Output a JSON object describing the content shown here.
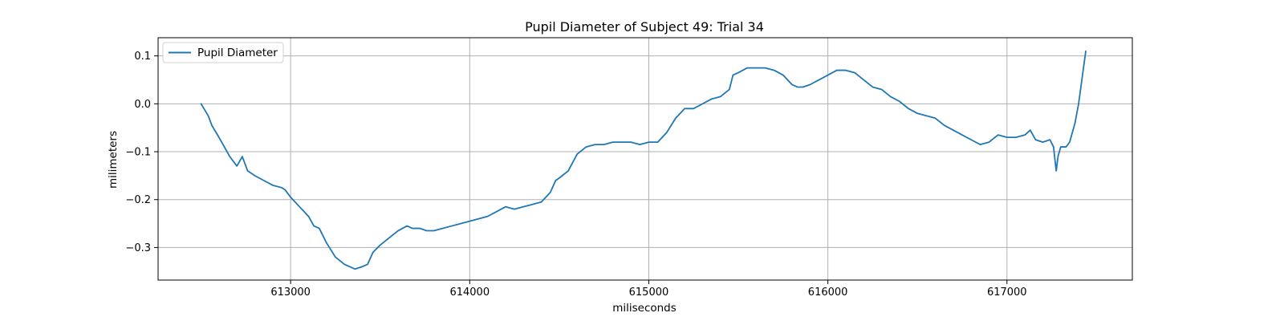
{
  "chart_data": {
    "type": "line",
    "title": "Pupil Diameter of Subject 49: Trial 34",
    "xlabel": "miliseconds",
    "ylabel": "milimeters",
    "xlim": [
      612260,
      617700
    ],
    "ylim": [
      -0.368,
      0.138
    ],
    "xticks": [
      613000,
      614000,
      615000,
      616000,
      617000
    ],
    "yticks": [
      -0.3,
      -0.2,
      -0.1,
      0.0,
      0.1
    ],
    "xtick_labels": [
      "613000",
      "614000",
      "615000",
      "616000",
      "617000"
    ],
    "ytick_labels": [
      "−0.3",
      "−0.2",
      "−0.1",
      "0.0",
      "0.1"
    ],
    "grid": true,
    "legend_position": "top-left",
    "colors": {
      "series": "#1f77b4",
      "grid": "#b0b0b0",
      "axis": "#000000"
    },
    "series": [
      {
        "name": "Pupil Diameter",
        "x": [
          612500,
          612540,
          612560,
          612600,
          612630,
          612660,
          612700,
          612730,
          612760,
          612800,
          612850,
          612900,
          612950,
          612970,
          613000,
          613050,
          613100,
          613130,
          613160,
          613200,
          613250,
          613300,
          613330,
          613360,
          613400,
          613430,
          613460,
          613500,
          613550,
          613600,
          613650,
          613680,
          613720,
          613760,
          613800,
          613850,
          613900,
          613950,
          614000,
          614050,
          614100,
          614150,
          614200,
          614250,
          614300,
          614350,
          614400,
          614450,
          614480,
          614500,
          614550,
          614600,
          614650,
          614700,
          614750,
          614800,
          614850,
          614900,
          614950,
          615000,
          615050,
          615100,
          615150,
          615200,
          615250,
          615300,
          615350,
          615400,
          615450,
          615470,
          615500,
          615550,
          615600,
          615650,
          615700,
          615750,
          615800,
          615830,
          615860,
          615900,
          615950,
          616000,
          616050,
          616100,
          616150,
          616200,
          616250,
          616300,
          616350,
          616400,
          616450,
          616500,
          616550,
          616600,
          616650,
          616700,
          616750,
          616800,
          616850,
          616900,
          616950,
          617000,
          617050,
          617100,
          617130,
          617160,
          617200,
          617240,
          617260,
          617275,
          617285,
          617300,
          617330,
          617350,
          617380,
          617400,
          617440
        ],
        "y": [
          0.0,
          -0.025,
          -0.045,
          -0.07,
          -0.09,
          -0.11,
          -0.13,
          -0.11,
          -0.14,
          -0.15,
          -0.16,
          -0.17,
          -0.175,
          -0.18,
          -0.195,
          -0.215,
          -0.235,
          -0.255,
          -0.26,
          -0.29,
          -0.32,
          -0.335,
          -0.34,
          -0.345,
          -0.34,
          -0.335,
          -0.31,
          -0.295,
          -0.28,
          -0.265,
          -0.255,
          -0.26,
          -0.26,
          -0.265,
          -0.265,
          -0.26,
          -0.255,
          -0.25,
          -0.245,
          -0.24,
          -0.235,
          -0.225,
          -0.215,
          -0.22,
          -0.215,
          -0.21,
          -0.205,
          -0.185,
          -0.16,
          -0.155,
          -0.14,
          -0.105,
          -0.09,
          -0.085,
          -0.085,
          -0.08,
          -0.08,
          -0.08,
          -0.085,
          -0.08,
          -0.08,
          -0.06,
          -0.03,
          -0.01,
          -0.01,
          0.0,
          0.01,
          0.015,
          0.03,
          0.06,
          0.065,
          0.075,
          0.075,
          0.075,
          0.07,
          0.06,
          0.04,
          0.035,
          0.035,
          0.04,
          0.05,
          0.06,
          0.07,
          0.07,
          0.065,
          0.05,
          0.035,
          0.03,
          0.015,
          0.005,
          -0.01,
          -0.02,
          -0.025,
          -0.03,
          -0.045,
          -0.055,
          -0.065,
          -0.075,
          -0.085,
          -0.08,
          -0.065,
          -0.07,
          -0.07,
          -0.065,
          -0.055,
          -0.075,
          -0.08,
          -0.075,
          -0.09,
          -0.14,
          -0.11,
          -0.09,
          -0.09,
          -0.08,
          -0.04,
          0.0,
          0.11
        ]
      }
    ]
  }
}
